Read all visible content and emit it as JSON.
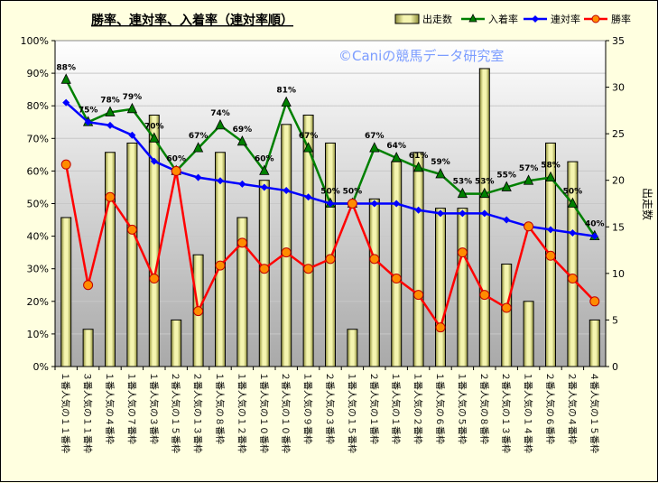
{
  "chart_data": {
    "type": "bar",
    "title": "勝率、連対率、入着率（連対率順）",
    "watermark": "©Caniの競馬データ研究室",
    "ylabel_right": "出走数",
    "y_left_ticks": [
      "0%",
      "10%",
      "20%",
      "30%",
      "40%",
      "50%",
      "60%",
      "70%",
      "80%",
      "90%",
      "100%"
    ],
    "y_right_ticks": [
      "0",
      "5",
      "10",
      "15",
      "20",
      "25",
      "30",
      "35"
    ],
    "ylim_left": [
      0,
      100
    ],
    "ylim_right": [
      0,
      35
    ],
    "legend_position": "top-right",
    "categories": [
      "１番人気の１１番枠",
      "３番人気の１１番枠",
      "１番人気の４番枠",
      "１番人気の７番枠",
      "１番人気の３番枠",
      "２番人気の１５番枠",
      "２番人気の１３番枠",
      "１番人気の８番枠",
      "１番人気の１２番枠",
      "１番人気の１０番枠",
      "２番人気の１０番枠",
      "１番人気の９番枠",
      "２番人気の３番枠",
      "１番人気の１５番枠",
      "２番人気の１番枠",
      "１番人気の１番枠",
      "１番人気の２番枠",
      "１番人気の６番枠",
      "１番人気の５番枠",
      "２番人気の８番枠",
      "２番人気の１３番枠",
      "１番人気の１４番枠",
      "２番人気の６番枠",
      "２番人気の４番枠",
      "４番人気の１５番枠"
    ],
    "series": [
      {
        "name": "出走数",
        "kind": "bar",
        "axis": "right",
        "color": "#e6e68c",
        "values": [
          16,
          4,
          23,
          24,
          27,
          5,
          12,
          23,
          16,
          20,
          26,
          27,
          24,
          4,
          18,
          22,
          23,
          17,
          17,
          32,
          11,
          7,
          24,
          22,
          5
        ]
      },
      {
        "name": "入着率",
        "kind": "line",
        "axis": "left",
        "color": "#008000",
        "values": [
          88,
          75,
          78,
          79,
          70,
          60,
          67,
          74,
          69,
          60,
          81,
          67,
          50,
          50,
          67,
          64,
          61,
          59,
          53,
          53,
          55,
          57,
          58,
          50,
          40
        ],
        "labels": [
          "88%",
          "75%",
          "78%",
          "79%",
          "70%",
          "60%",
          "67%",
          "74%",
          "69%",
          "60%",
          "81%",
          "67%",
          "50%",
          "50%",
          "67%",
          "64%",
          "61%",
          "59%",
          "53%",
          "53%",
          "55%",
          "57%",
          "58%",
          "50%",
          "40%"
        ]
      },
      {
        "name": "連対率",
        "kind": "line",
        "axis": "left",
        "color": "#0000ff",
        "values": [
          81,
          75,
          74,
          71,
          63,
          60,
          58,
          57,
          56,
          55,
          54,
          52,
          50,
          50,
          50,
          50,
          48,
          47,
          47,
          47,
          45,
          43,
          42,
          41,
          40
        ]
      },
      {
        "name": "勝率",
        "kind": "line",
        "axis": "left",
        "color": "#ff0000",
        "values": [
          62,
          25,
          52,
          42,
          27,
          60,
          17,
          31,
          38,
          30,
          35,
          30,
          33,
          50,
          33,
          27,
          22,
          12,
          35,
          22,
          18,
          43,
          34,
          27,
          20
        ]
      }
    ]
  }
}
